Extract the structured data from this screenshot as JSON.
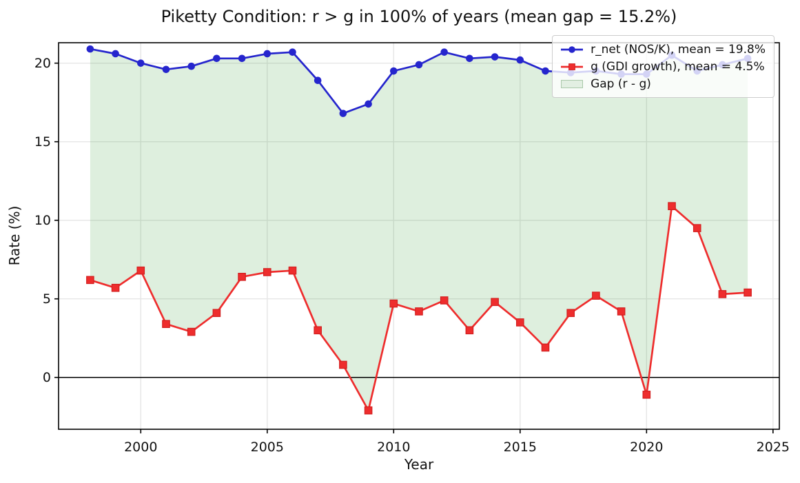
{
  "chart_data": {
    "type": "line",
    "title": "Piketty Condition: r > g in 100% of years (mean gap = 15.2%)",
    "xlabel": "Year",
    "ylabel": "Rate (%)",
    "x": [
      1998,
      1999,
      2000,
      2001,
      2002,
      2003,
      2004,
      2005,
      2006,
      2007,
      2008,
      2009,
      2010,
      2011,
      2012,
      2013,
      2014,
      2015,
      2016,
      2017,
      2018,
      2019,
      2020,
      2021,
      2022,
      2023,
      2024
    ],
    "series": [
      {
        "name": "r_net (NOS/K), mean = 19.8%",
        "color": "#2525cd",
        "marker": "circle",
        "values": [
          20.9,
          20.6,
          20.0,
          19.6,
          19.8,
          20.3,
          20.3,
          20.6,
          20.7,
          18.9,
          16.8,
          17.4,
          19.5,
          19.9,
          20.7,
          20.3,
          20.4,
          20.2,
          19.5,
          19.4,
          19.5,
          19.3,
          19.3,
          20.5,
          19.5,
          19.9,
          20.3
        ]
      },
      {
        "name": "g (GDI growth), mean = 4.5%",
        "color": "#ee2d2d",
        "marker": "square",
        "marker_edge": "#d21f1f",
        "values": [
          6.2,
          5.7,
          6.8,
          3.4,
          2.9,
          4.1,
          6.4,
          6.7,
          6.8,
          3.0,
          0.8,
          -2.1,
          4.7,
          4.2,
          4.9,
          3.0,
          4.8,
          3.5,
          1.9,
          4.1,
          5.2,
          4.2,
          -1.1,
          10.9,
          9.5,
          5.3,
          5.4
        ]
      }
    ],
    "gap_fill": {
      "label": "Gap (r - g)",
      "fill": "rgba(0,128,0,0.13)",
      "legend_fill": "#e2efe2",
      "legend_edge": "#a9c8a9"
    },
    "xlim": [
      1996.75,
      2025.25
    ],
    "ylim": [
      -3.3,
      21.3
    ],
    "xticks": [
      2000,
      2005,
      2010,
      2015,
      2020,
      2025
    ],
    "yticks": [
      0,
      5,
      10,
      15,
      20
    ],
    "grid": true,
    "grid_color": "#e6e6e6",
    "spine_color": "#000000",
    "zero_line": true,
    "legend_position": "upper right"
  }
}
